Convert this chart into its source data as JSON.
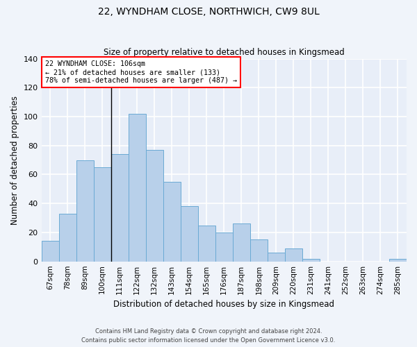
{
  "title": "22, WYNDHAM CLOSE, NORTHWICH, CW9 8UL",
  "subtitle": "Size of property relative to detached houses in Kingsmead",
  "xlabel": "Distribution of detached houses by size in Kingsmead",
  "ylabel": "Number of detached properties",
  "bar_color": "#b8d0ea",
  "bar_edge_color": "#6aaad4",
  "background_color": "#e8eef8",
  "grid_color": "#ffffff",
  "fig_background": "#f0f4fa",
  "categories": [
    "67sqm",
    "78sqm",
    "89sqm",
    "100sqm",
    "111sqm",
    "122sqm",
    "132sqm",
    "143sqm",
    "154sqm",
    "165sqm",
    "176sqm",
    "187sqm",
    "198sqm",
    "209sqm",
    "220sqm",
    "231sqm",
    "241sqm",
    "252sqm",
    "263sqm",
    "274sqm",
    "285sqm"
  ],
  "values": [
    14,
    33,
    70,
    65,
    74,
    102,
    77,
    55,
    38,
    25,
    20,
    26,
    15,
    6,
    9,
    2,
    0,
    0,
    0,
    0,
    2
  ],
  "ylim": [
    0,
    140
  ],
  "yticks": [
    0,
    20,
    40,
    60,
    80,
    100,
    120,
    140
  ],
  "property_label": "22 WYNDHAM CLOSE: 106sqm",
  "annotation_line1": "← 21% of detached houses are smaller (133)",
  "annotation_line2": "78% of semi-detached houses are larger (487) →",
  "vline_bar_index": 3,
  "footnote1": "Contains HM Land Registry data © Crown copyright and database right 2024.",
  "footnote2": "Contains public sector information licensed under the Open Government Licence v3.0."
}
